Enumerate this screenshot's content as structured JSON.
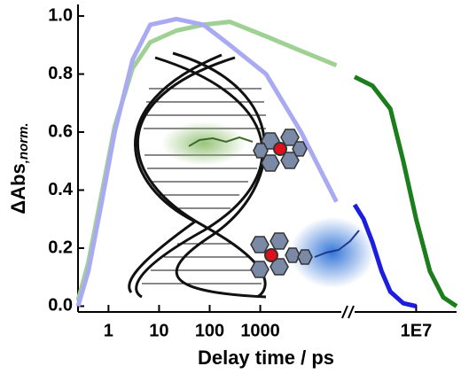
{
  "chart_data": {
    "type": "line",
    "x_label": "Delay time / ps",
    "y_label": "ΔAbs",
    "y_label_subscript": ",norm.",
    "xscale": "log",
    "xlim": [
      0.25,
      40000
    ],
    "xticks": [
      1,
      10,
      100,
      1000
    ],
    "x2lim": [
      300000,
      100000000
    ],
    "x2ticks": [
      {
        "value": 10000000,
        "label": "1E7"
      }
    ],
    "ylim": [
      -0.02,
      1.04
    ],
    "yticks": [
      {
        "value": 0,
        "label": "0.0"
      },
      0.2,
      0.4,
      0.6,
      0.8,
      {
        "value": 1,
        "label": "1.0"
      }
    ],
    "series": [
      {
        "color": "#9fd195",
        "width": 5,
        "x": [
          0.25,
          0.4,
          0.72,
          1.33,
          3,
          6.7,
          22,
          75,
          250,
          1300,
          6400,
          32000
        ],
        "values": [
          0.02,
          0.15,
          0.38,
          0.62,
          0.82,
          0.91,
          0.95,
          0.97,
          0.98,
          0.93,
          0.88,
          0.83
        ]
      },
      {
        "color": "#a9aaf2",
        "width": 5,
        "x": [
          0.25,
          0.4,
          0.72,
          1.33,
          3,
          6.7,
          22,
          75,
          250,
          1300,
          6400,
          32000
        ],
        "values": [
          0.0,
          0.12,
          0.35,
          0.6,
          0.85,
          0.97,
          0.99,
          0.97,
          0.9,
          0.8,
          0.6,
          0.36
        ]
      },
      {
        "color": "#1b7d1b",
        "width": 5,
        "axis": "x2",
        "x": [
          300000,
          830000,
          2300000,
          4800000,
          10000000,
          22000000,
          47000000,
          100000000
        ],
        "values": [
          0.79,
          0.76,
          0.68,
          0.5,
          0.3,
          0.12,
          0.03,
          0.0
        ]
      },
      {
        "color": "#1d1de0",
        "width": 5,
        "axis": "x2",
        "x": [
          300000,
          500000,
          830000,
          1400000,
          2300000,
          4800000,
          10000000
        ],
        "values": [
          0.35,
          0.3,
          0.22,
          0.12,
          0.05,
          0.01,
          0.0
        ]
      }
    ]
  }
}
